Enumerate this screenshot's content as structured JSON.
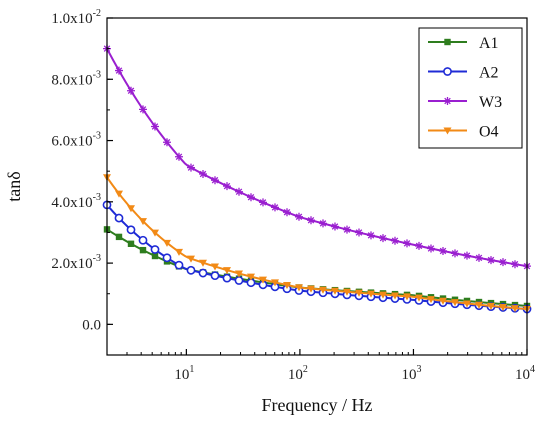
{
  "chart_data": {
    "type": "line",
    "xlabel": "Frequency / Hz",
    "ylabel": "tanδ",
    "x_scale": "log",
    "xlim": [
      2,
      10000
    ],
    "ylim": [
      -0.001,
      0.01
    ],
    "grid": false,
    "legend_position": "top-right",
    "y_ticks": [
      {
        "value": 0.0,
        "label": "0.0",
        "exp": ""
      },
      {
        "value": 0.002,
        "label": "2.0x10",
        "exp": "-3"
      },
      {
        "value": 0.004,
        "label": "4.0x10",
        "exp": "-3"
      },
      {
        "value": 0.006,
        "label": "6.0x10",
        "exp": "-3"
      },
      {
        "value": 0.008,
        "label": "8.0x10",
        "exp": "-3"
      },
      {
        "value": 0.01,
        "label": "1.0x10",
        "exp": "-2"
      }
    ],
    "x_ticks": [
      {
        "value": 10,
        "label": "10",
        "exp": "1"
      },
      {
        "value": 100,
        "label": "10",
        "exp": "2"
      },
      {
        "value": 1000,
        "label": "10",
        "exp": "3"
      },
      {
        "value": 10000,
        "label": "10",
        "exp": "4"
      }
    ],
    "series": [
      {
        "name": "A1",
        "color": "#2e7d1e",
        "marker": "square",
        "x": [
          2,
          10,
          100,
          1000,
          10000
        ],
        "y": [
          0.0031,
          0.0018,
          0.0012,
          0.00095,
          0.0006
        ]
      },
      {
        "name": "A2",
        "color": "#1f2bd6",
        "marker": "circle",
        "x": [
          2,
          10,
          100,
          1000,
          10000
        ],
        "y": [
          0.0039,
          0.0018,
          0.0011,
          0.0008,
          0.0005
        ]
      },
      {
        "name": "W3",
        "color": "#9a1fd0",
        "marker": "star",
        "x": [
          2,
          10,
          100,
          1000,
          10000
        ],
        "y": [
          0.009,
          0.0052,
          0.0035,
          0.0026,
          0.0019
        ]
      },
      {
        "name": "O4",
        "color": "#f28a16",
        "marker": "triangle-down",
        "x": [
          2,
          10,
          100,
          1000,
          10000
        ],
        "y": [
          0.0048,
          0.0022,
          0.0012,
          0.0009,
          0.0005
        ]
      }
    ]
  }
}
